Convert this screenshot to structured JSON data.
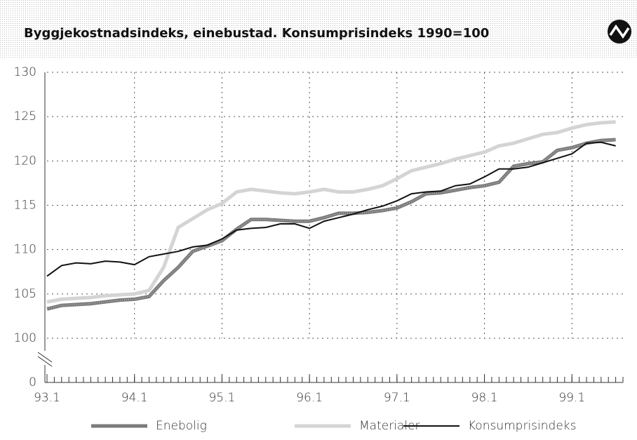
{
  "chart_data": {
    "type": "line",
    "title": "Byggjekostnadsindeks, einebustad. Konsumprisindeks 1990=100",
    "x": [
      0,
      2,
      4,
      6,
      8,
      10,
      12,
      14,
      16,
      18,
      20,
      22,
      24,
      26,
      28,
      30,
      32,
      34,
      36,
      38,
      40,
      42,
      44,
      46,
      48,
      50,
      52,
      54,
      56,
      58,
      60,
      62,
      64,
      66,
      68,
      70,
      72,
      74,
      76,
      78
    ],
    "xlim": [
      0,
      79
    ],
    "xticks": [
      {
        "value": 0,
        "label": "93.1"
      },
      {
        "value": 12,
        "label": "94.1"
      },
      {
        "value": 24,
        "label": "95.1"
      },
      {
        "value": 36,
        "label": "96.1"
      },
      {
        "value": 48,
        "label": "97.1"
      },
      {
        "value": 60,
        "label": "98.1"
      },
      {
        "value": 72,
        "label": "99.1"
      }
    ],
    "ylim": [
      100,
      130
    ],
    "yticks": [
      100,
      105,
      110,
      115,
      120,
      125,
      130
    ],
    "y_break_tick": 0,
    "grid": true,
    "series": [
      {
        "name": "Enebolig",
        "color": "#7a7a7a",
        "values": [
          103.3,
          103.7,
          103.8,
          103.9,
          104.1,
          104.3,
          104.4,
          104.7,
          106.5,
          108.0,
          109.8,
          110.4,
          111.0,
          112.3,
          113.4,
          113.4,
          113.3,
          113.2,
          113.2,
          113.6,
          114.1,
          114.1,
          114.2,
          114.4,
          114.7,
          115.4,
          116.3,
          116.4,
          116.7,
          117.0,
          117.2,
          117.6,
          119.4,
          119.7,
          119.9,
          121.2,
          121.5,
          122.0,
          122.3,
          122.4
        ]
      },
      {
        "name": "Materialer",
        "color": "#d4d4d4",
        "values": [
          104.1,
          104.4,
          104.5,
          104.6,
          104.8,
          104.9,
          105.0,
          105.4,
          108.0,
          112.5,
          113.5,
          114.5,
          115.2,
          116.5,
          116.8,
          116.6,
          116.4,
          116.3,
          116.5,
          116.8,
          116.5,
          116.5,
          116.8,
          117.2,
          118.0,
          118.9,
          119.3,
          119.7,
          120.2,
          120.6,
          121.0,
          121.7,
          122.0,
          122.5,
          123.0,
          123.2,
          123.7,
          124.1,
          124.3,
          124.4
        ]
      },
      {
        "name": "Konsumprisindeks",
        "color": "#111111",
        "values": [
          107.0,
          108.2,
          108.5,
          108.4,
          108.7,
          108.6,
          108.3,
          109.2,
          109.5,
          109.8,
          110.3,
          110.5,
          111.2,
          112.2,
          112.4,
          112.5,
          112.9,
          112.9,
          112.4,
          113.2,
          113.6,
          114.0,
          114.5,
          114.9,
          115.5,
          116.3,
          116.5,
          116.6,
          117.2,
          117.4,
          118.2,
          119.1,
          119.1,
          119.3,
          119.8,
          120.3,
          120.8,
          122.0,
          122.1,
          121.7
        ]
      }
    ]
  }
}
